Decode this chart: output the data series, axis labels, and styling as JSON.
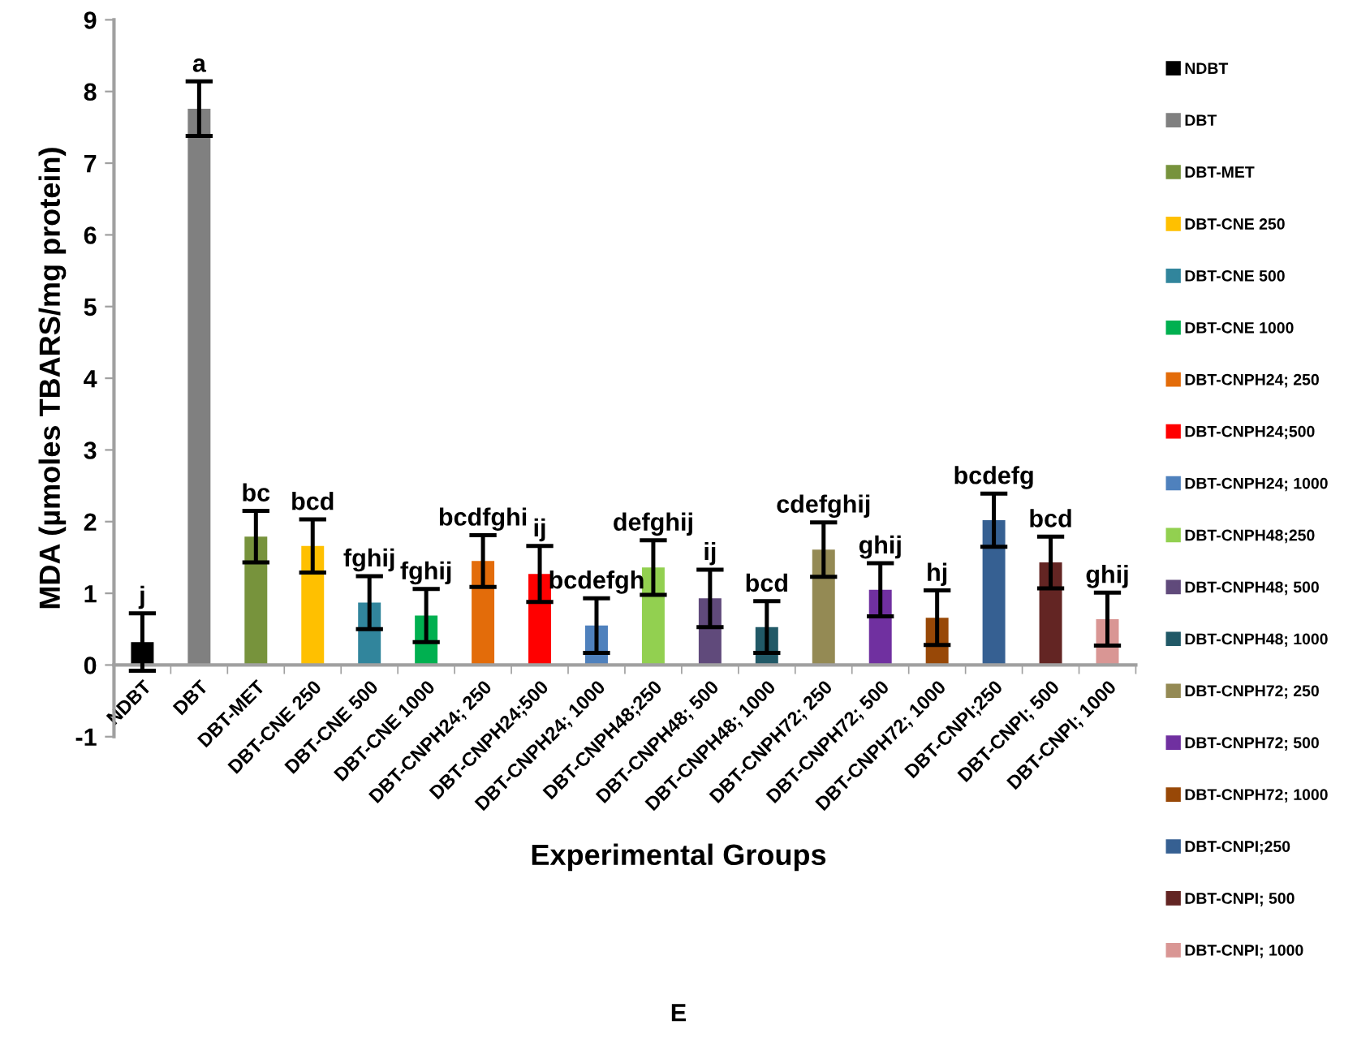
{
  "chart_data": {
    "type": "bar",
    "xlabel": "Experimental Groups",
    "ylabel": "MDA (µmoles TBARS/mg protein)",
    "categories": [
      "NDBT",
      "DBT",
      "DBT-MET",
      "DBT-CNE 250",
      "DBT-CNE 500",
      "DBT-CNE 1000",
      "DBT-CNPH24; 250",
      "DBT-CNPH24;500",
      "DBT-CNPH24; 1000",
      "DBT-CNPH48;250",
      "DBT-CNPH48; 500",
      "DBT-CNPH48; 1000",
      "DBT-CNPH72; 250",
      "DBT-CNPH72; 500",
      "DBT-CNPH72; 1000",
      "DBT-CNPI;250",
      "DBT-CNPI; 500",
      "DBT-CNPI; 1000"
    ],
    "series": [
      {
        "name": "NDBT",
        "color": "#000000",
        "values": [
          0.32,
          null,
          null,
          null,
          null,
          null,
          null,
          null,
          null,
          null,
          null,
          null,
          null,
          null,
          null,
          null,
          null,
          null
        ],
        "errors": [
          0.4,
          null,
          null,
          null,
          null,
          null,
          null,
          null,
          null,
          null,
          null,
          null,
          null,
          null,
          null,
          null,
          null,
          null
        ]
      },
      {
        "name": "DBT",
        "color": "#808080",
        "values": [
          null,
          7.76,
          null,
          null,
          null,
          null,
          null,
          null,
          null,
          null,
          null,
          null,
          null,
          null,
          null,
          null,
          null,
          null
        ],
        "errors": [
          null,
          0.38,
          null,
          null,
          null,
          null,
          null,
          null,
          null,
          null,
          null,
          null,
          null,
          null,
          null,
          null,
          null,
          null
        ]
      },
      {
        "name": "DBT-MET",
        "color": "#77933c",
        "values": [
          null,
          null,
          1.79,
          null,
          null,
          null,
          null,
          null,
          null,
          null,
          null,
          null,
          null,
          null,
          null,
          null,
          null,
          null
        ],
        "errors": [
          null,
          null,
          0.36,
          null,
          null,
          null,
          null,
          null,
          null,
          null,
          null,
          null,
          null,
          null,
          null,
          null,
          null,
          null
        ]
      },
      {
        "name": "DBT-CNE 250",
        "color": "#ffc000",
        "values": [
          null,
          null,
          null,
          1.66,
          null,
          null,
          null,
          null,
          null,
          null,
          null,
          null,
          null,
          null,
          null,
          null,
          null,
          null
        ],
        "errors": [
          null,
          null,
          null,
          0.37,
          null,
          null,
          null,
          null,
          null,
          null,
          null,
          null,
          null,
          null,
          null,
          null,
          null,
          null
        ]
      },
      {
        "name": "DBT-CNE 500",
        "color": "#31859c",
        "values": [
          null,
          null,
          null,
          null,
          0.87,
          null,
          null,
          null,
          null,
          null,
          null,
          null,
          null,
          null,
          null,
          null,
          null,
          null
        ],
        "errors": [
          null,
          null,
          null,
          null,
          0.37,
          null,
          null,
          null,
          null,
          null,
          null,
          null,
          null,
          null,
          null,
          null,
          null,
          null
        ]
      },
      {
        "name": "DBT-CNE 1000",
        "color": "#00b050",
        "values": [
          null,
          null,
          null,
          null,
          null,
          0.69,
          null,
          null,
          null,
          null,
          null,
          null,
          null,
          null,
          null,
          null,
          null,
          null
        ],
        "errors": [
          null,
          null,
          null,
          null,
          null,
          0.37,
          null,
          null,
          null,
          null,
          null,
          null,
          null,
          null,
          null,
          null,
          null,
          null
        ]
      },
      {
        "name": "DBT-CNPH24; 250",
        "color": "#e36c0a",
        "values": [
          null,
          null,
          null,
          null,
          null,
          null,
          1.45,
          null,
          null,
          null,
          null,
          null,
          null,
          null,
          null,
          null,
          null,
          null
        ],
        "errors": [
          null,
          null,
          null,
          null,
          null,
          null,
          0.36,
          null,
          null,
          null,
          null,
          null,
          null,
          null,
          null,
          null,
          null,
          null
        ]
      },
      {
        "name": "DBT-CNPH24;500",
        "color": "#ff0000",
        "values": [
          null,
          null,
          null,
          null,
          null,
          null,
          null,
          1.27,
          null,
          null,
          null,
          null,
          null,
          null,
          null,
          null,
          null,
          null
        ],
        "errors": [
          null,
          null,
          null,
          null,
          null,
          null,
          null,
          0.39,
          null,
          null,
          null,
          null,
          null,
          null,
          null,
          null,
          null,
          null
        ]
      },
      {
        "name": "DBT-CNPH24; 1000",
        "color": "#4f81bd",
        "values": [
          null,
          null,
          null,
          null,
          null,
          null,
          null,
          null,
          0.55,
          null,
          null,
          null,
          null,
          null,
          null,
          null,
          null,
          null
        ],
        "errors": [
          null,
          null,
          null,
          null,
          null,
          null,
          null,
          null,
          0.38,
          null,
          null,
          null,
          null,
          null,
          null,
          null,
          null,
          null
        ]
      },
      {
        "name": "DBT-CNPH48;250",
        "color": "#92d050",
        "values": [
          null,
          null,
          null,
          null,
          null,
          null,
          null,
          null,
          null,
          1.36,
          null,
          null,
          null,
          null,
          null,
          null,
          null,
          null
        ],
        "errors": [
          null,
          null,
          null,
          null,
          null,
          null,
          null,
          null,
          null,
          0.38,
          null,
          null,
          null,
          null,
          null,
          null,
          null,
          null
        ]
      },
      {
        "name": "DBT-CNPH48; 500",
        "color": "#604a7b",
        "values": [
          null,
          null,
          null,
          null,
          null,
          null,
          null,
          null,
          null,
          null,
          0.93,
          null,
          null,
          null,
          null,
          null,
          null,
          null
        ],
        "errors": [
          null,
          null,
          null,
          null,
          null,
          null,
          null,
          null,
          null,
          null,
          0.4,
          null,
          null,
          null,
          null,
          null,
          null,
          null
        ]
      },
      {
        "name": "DBT-CNPH48; 1000",
        "color": "#215967",
        "values": [
          null,
          null,
          null,
          null,
          null,
          null,
          null,
          null,
          null,
          null,
          null,
          0.53,
          null,
          null,
          null,
          null,
          null,
          null
        ],
        "errors": [
          null,
          null,
          null,
          null,
          null,
          null,
          null,
          null,
          null,
          null,
          null,
          0.36,
          null,
          null,
          null,
          null,
          null,
          null
        ]
      },
      {
        "name": "DBT-CNPH72; 250",
        "color": "#948a54",
        "values": [
          null,
          null,
          null,
          null,
          null,
          null,
          null,
          null,
          null,
          null,
          null,
          null,
          1.61,
          null,
          null,
          null,
          null,
          null
        ],
        "errors": [
          null,
          null,
          null,
          null,
          null,
          null,
          null,
          null,
          null,
          null,
          null,
          null,
          0.38,
          null,
          null,
          null,
          null,
          null
        ]
      },
      {
        "name": "DBT-CNPH72; 500",
        "color": "#7030a0",
        "values": [
          null,
          null,
          null,
          null,
          null,
          null,
          null,
          null,
          null,
          null,
          null,
          null,
          null,
          1.05,
          null,
          null,
          null,
          null
        ],
        "errors": [
          null,
          null,
          null,
          null,
          null,
          null,
          null,
          null,
          null,
          null,
          null,
          null,
          null,
          0.37,
          null,
          null,
          null,
          null
        ]
      },
      {
        "name": "DBT-CNPH72; 1000",
        "color": "#984807",
        "values": [
          null,
          null,
          null,
          null,
          null,
          null,
          null,
          null,
          null,
          null,
          null,
          null,
          null,
          null,
          0.66,
          null,
          null,
          null
        ],
        "errors": [
          null,
          null,
          null,
          null,
          null,
          null,
          null,
          null,
          null,
          null,
          null,
          null,
          null,
          null,
          0.38,
          null,
          null,
          null
        ]
      },
      {
        "name": "DBT-CNPI;250",
        "color": "#366092",
        "values": [
          null,
          null,
          null,
          null,
          null,
          null,
          null,
          null,
          null,
          null,
          null,
          null,
          null,
          null,
          null,
          2.02,
          null,
          null
        ],
        "errors": [
          null,
          null,
          null,
          null,
          null,
          null,
          null,
          null,
          null,
          null,
          null,
          null,
          null,
          null,
          null,
          0.37,
          null,
          null
        ]
      },
      {
        "name": "DBT-CNPI; 500",
        "color": "#632523",
        "values": [
          null,
          null,
          null,
          null,
          null,
          null,
          null,
          null,
          null,
          null,
          null,
          null,
          null,
          null,
          null,
          null,
          1.43,
          null
        ],
        "errors": [
          null,
          null,
          null,
          null,
          null,
          null,
          null,
          null,
          null,
          null,
          null,
          null,
          null,
          null,
          null,
          null,
          0.36,
          null
        ]
      },
      {
        "name": "DBT-CNPI; 1000",
        "color": "#d99694",
        "values": [
          null,
          null,
          null,
          null,
          null,
          null,
          null,
          null,
          null,
          null,
          null,
          null,
          null,
          null,
          null,
          null,
          null,
          0.64
        ],
        "errors": [
          null,
          null,
          null,
          null,
          null,
          null,
          null,
          null,
          null,
          null,
          null,
          null,
          null,
          null,
          null,
          null,
          null,
          0.37
        ]
      }
    ],
    "ylim": [
      -1,
      9
    ],
    "yticks": [
      -1,
      0,
      1,
      2,
      3,
      4,
      5,
      6,
      7,
      8,
      9
    ],
    "legend": "right",
    "grid": false,
    "annotations": [
      {
        "text": "j",
        "x": "NDBT",
        "y": 0.72
      },
      {
        "text": "a",
        "x": "DBT",
        "y": 8.14
      },
      {
        "text": "bc",
        "x": "DBT-MET",
        "y": 2.15
      },
      {
        "text": "bcd",
        "x": "DBT-CNE 250",
        "y": 2.03
      },
      {
        "text": "fghij",
        "x": "DBT-CNE 500",
        "y": 1.24
      },
      {
        "text": "fghij",
        "x": "DBT-CNE 1000",
        "y": 1.06
      },
      {
        "text": "bcdfghi",
        "x": "DBT-CNPH24; 250",
        "y": 1.81
      },
      {
        "text": "ij",
        "x": "DBT-CNPH24;500",
        "y": 1.66
      },
      {
        "text": "bcdefgh",
        "x": "DBT-CNPH24; 1000",
        "y": 0.93
      },
      {
        "text": "defghij",
        "x": "DBT-CNPH48;250",
        "y": 1.74
      },
      {
        "text": "ij",
        "x": "DBT-CNPH48; 500",
        "y": 1.33
      },
      {
        "text": "bcd",
        "x": "DBT-CNPH48; 1000",
        "y": 0.89
      },
      {
        "text": "cdefghij",
        "x": "DBT-CNPH72; 250",
        "y": 1.99
      },
      {
        "text": "ghij",
        "x": "DBT-CNPH72; 500",
        "y": 1.42
      },
      {
        "text": "hj",
        "x": "DBT-CNPH72; 1000",
        "y": 1.04
      },
      {
        "text": "bcdefg",
        "x": "DBT-CNPI;250",
        "y": 2.39
      },
      {
        "text": "bcd",
        "x": "DBT-CNPI; 500",
        "y": 1.79
      },
      {
        "text": "ghij",
        "x": "DBT-CNPI; 1000",
        "y": 1.01
      },
      "E"
    ]
  }
}
